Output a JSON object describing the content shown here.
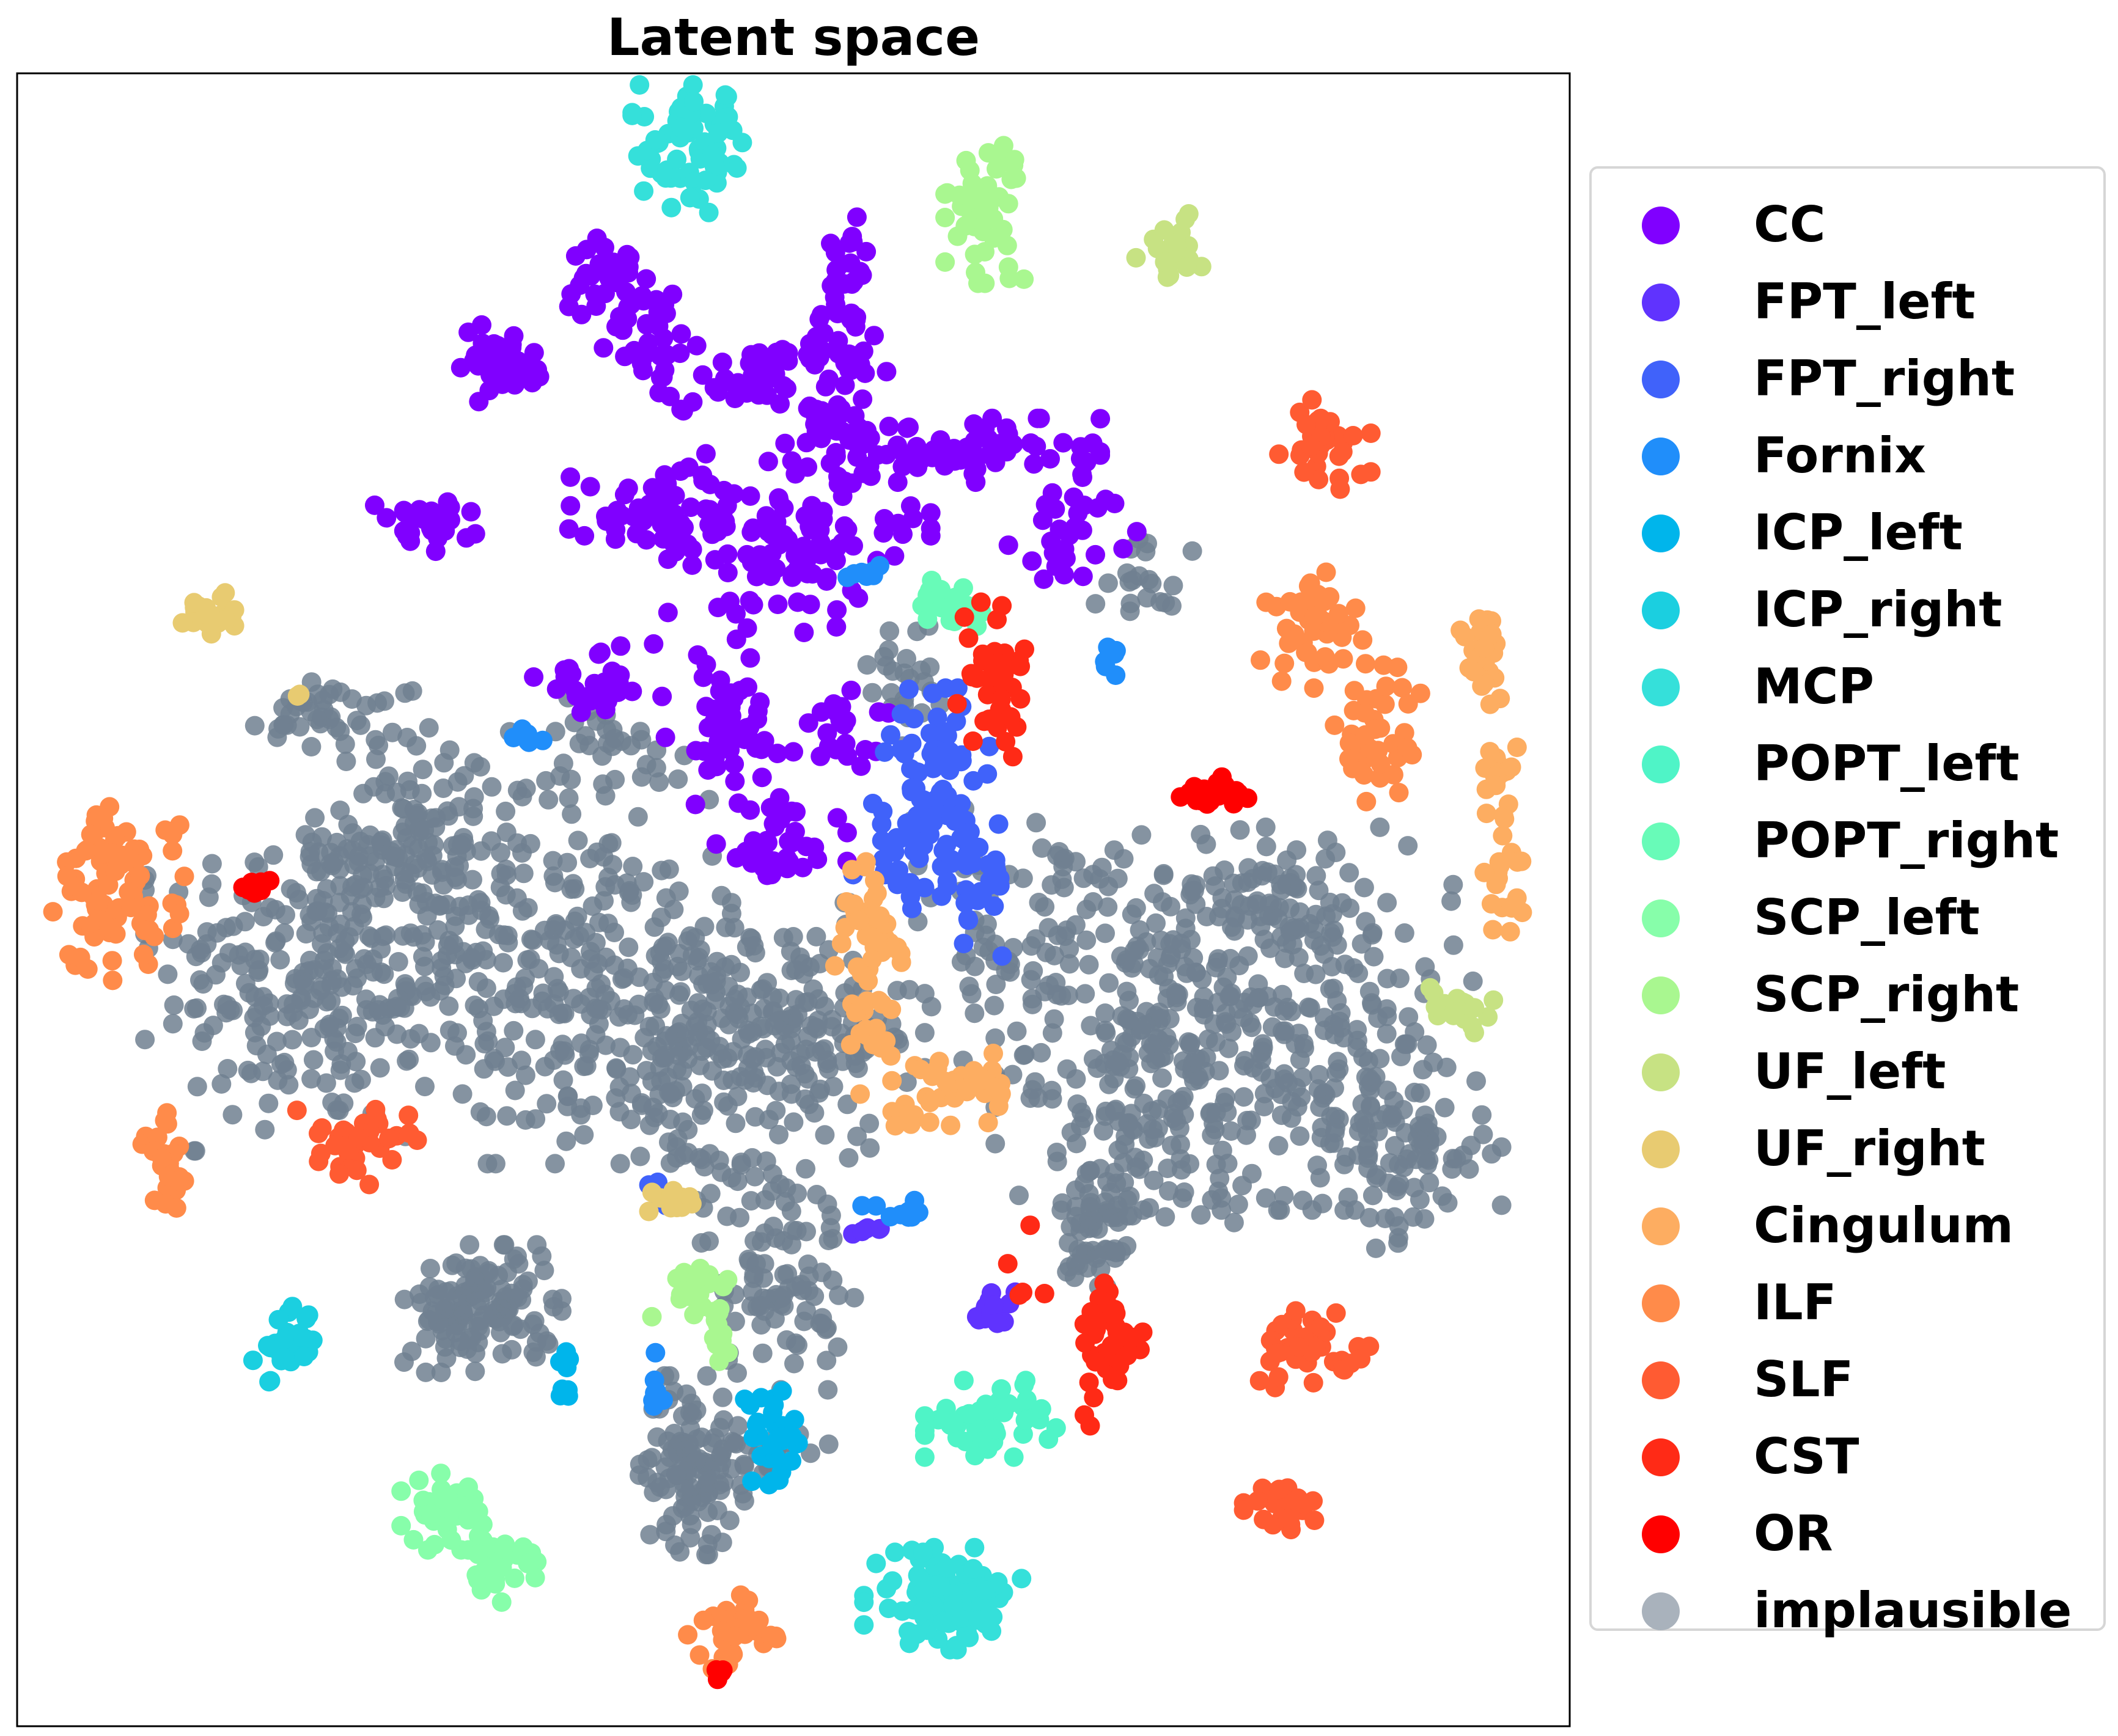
{
  "chart_data": {
    "type": "scatter",
    "title": "Latent space",
    "xlabel": "",
    "ylabel": "",
    "axis_ticks": "none",
    "grid": false,
    "legend_placement": "right, outside plot",
    "series": [
      {
        "name": "CC",
        "color": "#8000ff",
        "clusters": [
          {
            "x": -4.5,
            "y": 9.5,
            "sx": 0.5,
            "sy": 0.3,
            "n": 40
          },
          {
            "x": -2.6,
            "y": 11.0,
            "sx": 0.3,
            "sy": 0.3,
            "n": 25
          },
          {
            "x": -1.8,
            "y": 10.0,
            "sx": 0.4,
            "sy": 0.6,
            "n": 40
          },
          {
            "x": -0.2,
            "y": 9.2,
            "sx": 0.5,
            "sy": 0.2,
            "n": 25
          },
          {
            "x": 0.3,
            "y": 9.6,
            "sx": 0.3,
            "sy": 0.2,
            "n": 15
          },
          {
            "x": 1.4,
            "y": 10.2,
            "sx": 0.3,
            "sy": 1.0,
            "n": 55
          },
          {
            "x": 3.0,
            "y": 8.0,
            "sx": 1.2,
            "sy": 0.25,
            "n": 80
          },
          {
            "x": 1.0,
            "y": 8.5,
            "sx": 0.4,
            "sy": 0.2,
            "n": 20
          },
          {
            "x": -1.5,
            "y": 6.9,
            "sx": 0.8,
            "sy": 0.4,
            "n": 70
          },
          {
            "x": 0.6,
            "y": 6.4,
            "sx": 1.0,
            "sy": 0.7,
            "n": 100
          },
          {
            "x": -5.7,
            "y": 6.7,
            "sx": 0.4,
            "sy": 0.2,
            "n": 30
          },
          {
            "x": 5.2,
            "y": 6.8,
            "sx": 0.5,
            "sy": 0.5,
            "n": 30
          },
          {
            "x": -0.6,
            "y": 3.2,
            "sx": 0.5,
            "sy": 0.7,
            "n": 60
          },
          {
            "x": 0.3,
            "y": 1.2,
            "sx": 0.5,
            "sy": 0.4,
            "n": 40
          },
          {
            "x": -2.8,
            "y": 4.0,
            "sx": 0.5,
            "sy": 0.3,
            "n": 30
          },
          {
            "x": 1.4,
            "y": 3.2,
            "sx": 0.4,
            "sy": 0.3,
            "n": 20
          }
        ]
      },
      {
        "name": "FPT_left",
        "color": "#6033fe",
        "clusters": [
          {
            "x": 3.8,
            "y": -6.9,
            "sx": 0.2,
            "sy": 0.2,
            "n": 15
          },
          {
            "x": 1.8,
            "y": -5.5,
            "sx": 0.2,
            "sy": 0.1,
            "n": 6
          }
        ]
      },
      {
        "name": "FPT_right",
        "color": "#4062fa",
        "clusters": [
          {
            "x": 2.9,
            "y": 2.8,
            "sx": 0.4,
            "sy": 0.5,
            "n": 50
          },
          {
            "x": 2.6,
            "y": 1.2,
            "sx": 0.5,
            "sy": 0.5,
            "n": 50
          },
          {
            "x": 3.5,
            "y": 0.6,
            "sx": 0.3,
            "sy": 0.6,
            "n": 30
          },
          {
            "x": -1.7,
            "y": -5.0,
            "sx": 0.1,
            "sy": 0.2,
            "n": 6
          }
        ]
      },
      {
        "name": "Fornix",
        "color": "#208efa",
        "clusters": [
          {
            "x": 1.8,
            "y": 5.9,
            "sx": 0.2,
            "sy": 0.05,
            "n": 8
          },
          {
            "x": 2.2,
            "y": -5.1,
            "sx": 0.25,
            "sy": 0.1,
            "n": 10
          },
          {
            "x": -4.0,
            "y": 3.0,
            "sx": 0.2,
            "sy": 0.1,
            "n": 6
          },
          {
            "x": -1.8,
            "y": -8.2,
            "sx": 0.1,
            "sy": 0.3,
            "n": 8
          },
          {
            "x": 5.8,
            "y": 4.2,
            "sx": 0.1,
            "sy": 0.2,
            "n": 6
          }
        ]
      },
      {
        "name": "ICP_left",
        "color": "#00b5eb",
        "clusters": [
          {
            "x": 0.2,
            "y": -9.1,
            "sx": 0.3,
            "sy": 0.4,
            "n": 30
          },
          {
            "x": -3.3,
            "y": -8.0,
            "sx": 0.05,
            "sy": 0.3,
            "n": 8
          }
        ]
      },
      {
        "name": "ICP_right",
        "color": "#1bcfe0",
        "clusters": [
          {
            "x": -8.0,
            "y": -7.4,
            "sx": 0.25,
            "sy": 0.3,
            "n": 30
          }
        ]
      },
      {
        "name": "MCP",
        "color": "#35e0da",
        "clusters": [
          {
            "x": -1.1,
            "y": 13.2,
            "sx": 0.5,
            "sy": 0.5,
            "n": 70
          },
          {
            "x": 3.0,
            "y": -11.8,
            "sx": 0.6,
            "sy": 0.4,
            "n": 100
          }
        ]
      },
      {
        "name": "POPT_left",
        "color": "#4ff4c7",
        "clusters": [
          {
            "x": 3.8,
            "y": -8.7,
            "sx": 0.5,
            "sy": 0.3,
            "n": 50
          }
        ]
      },
      {
        "name": "POPT_right",
        "color": "#68fbb8",
        "clusters": [
          {
            "x": 3.1,
            "y": 5.3,
            "sx": 0.25,
            "sy": 0.25,
            "n": 25
          }
        ]
      },
      {
        "name": "SCP_left",
        "color": "#87feaa",
        "clusters": [
          {
            "x": -5.3,
            "y": -10.3,
            "sx": 0.35,
            "sy": 0.3,
            "n": 40
          },
          {
            "x": -4.4,
            "y": -11.2,
            "sx": 0.35,
            "sy": 0.3,
            "n": 30
          }
        ]
      },
      {
        "name": "SCP_right",
        "color": "#a9f790",
        "clusters": [
          {
            "x": 3.7,
            "y": 12.2,
            "sx": 0.3,
            "sy": 0.6,
            "n": 50
          },
          {
            "x": -1.1,
            "y": -6.5,
            "sx": 0.35,
            "sy": 0.2,
            "n": 20
          },
          {
            "x": -0.8,
            "y": -7.2,
            "sx": 0.1,
            "sy": 0.3,
            "n": 10
          }
        ]
      },
      {
        "name": "UF_left",
        "color": "#c7e283",
        "clusters": [
          {
            "x": 6.8,
            "y": 11.5,
            "sx": 0.3,
            "sy": 0.3,
            "n": 25
          },
          {
            "x": 11.7,
            "y": -1.6,
            "sx": 0.3,
            "sy": 0.2,
            "n": 20
          }
        ]
      },
      {
        "name": "UF_right",
        "color": "#e8cb71",
        "clusters": [
          {
            "x": -9.3,
            "y": 5.2,
            "sx": 0.2,
            "sy": 0.2,
            "n": 25
          },
          {
            "x": -1.4,
            "y": -5.0,
            "sx": 0.25,
            "sy": 0.15,
            "n": 12
          },
          {
            "x": -7.7,
            "y": 3.8,
            "sx": 0.05,
            "sy": 0.05,
            "n": 2
          }
        ]
      },
      {
        "name": "Cingulum",
        "color": "#fdad61",
        "clusters": [
          {
            "x": 12.1,
            "y": 4.5,
            "sx": 0.2,
            "sy": 0.4,
            "n": 25
          },
          {
            "x": 12.3,
            "y": 2.4,
            "sx": 0.15,
            "sy": 0.3,
            "n": 15
          },
          {
            "x": 12.4,
            "y": 0.6,
            "sx": 0.15,
            "sy": 0.5,
            "n": 20
          },
          {
            "x": 1.8,
            "y": -0.4,
            "sx": 0.3,
            "sy": 0.7,
            "n": 40
          },
          {
            "x": 1.9,
            "y": -2.0,
            "sx": 0.2,
            "sy": 0.5,
            "n": 20
          },
          {
            "x": 3.3,
            "y": -3.0,
            "sx": 0.35,
            "sy": 0.35,
            "n": 30
          },
          {
            "x": 2.4,
            "y": -3.5,
            "sx": 0.2,
            "sy": 0.1,
            "n": 10
          }
        ]
      },
      {
        "name": "ILF",
        "color": "#ff8b4a",
        "clusters": [
          {
            "x": -10.8,
            "y": 0.4,
            "sx": 0.5,
            "sy": 0.7,
            "n": 90
          },
          {
            "x": -10.0,
            "y": -4.3,
            "sx": 0.2,
            "sy": 0.4,
            "n": 25
          },
          {
            "x": 9.2,
            "y": 5.0,
            "sx": 0.4,
            "sy": 0.5,
            "n": 40
          },
          {
            "x": 10.3,
            "y": 3.0,
            "sx": 0.35,
            "sy": 0.6,
            "n": 40
          },
          {
            "x": -0.5,
            "y": -12.4,
            "sx": 0.35,
            "sy": 0.3,
            "n": 30
          }
        ]
      },
      {
        "name": "SLF",
        "color": "#ff5b32",
        "clusters": [
          {
            "x": 9.4,
            "y": 8.1,
            "sx": 0.35,
            "sy": 0.35,
            "n": 30
          },
          {
            "x": -6.9,
            "y": -4.0,
            "sx": 0.5,
            "sy": 0.3,
            "n": 40
          },
          {
            "x": 9.2,
            "y": -7.5,
            "sx": 0.5,
            "sy": 0.3,
            "n": 40
          },
          {
            "x": 8.7,
            "y": -10.2,
            "sx": 0.3,
            "sy": 0.2,
            "n": 25
          }
        ]
      },
      {
        "name": "CST",
        "color": "#ff2a16",
        "clusters": [
          {
            "x": 3.9,
            "y": 4.1,
            "sx": 0.3,
            "sy": 0.7,
            "n": 40
          },
          {
            "x": 5.8,
            "y": -7.5,
            "sx": 0.25,
            "sy": 0.6,
            "n": 40
          },
          {
            "x": 4.6,
            "y": -6.1,
            "sx": 0.4,
            "sy": 0.4,
            "n": 5
          }
        ]
      },
      {
        "name": "OR",
        "color": "#ff0000",
        "clusters": [
          {
            "x": 7.6,
            "y": 2.0,
            "sx": 0.3,
            "sy": 0.2,
            "n": 20
          },
          {
            "x": -8.5,
            "y": 0.5,
            "sx": 0.15,
            "sy": 0.1,
            "n": 10
          },
          {
            "x": -0.8,
            "y": -13.1,
            "sx": 0.08,
            "sy": 0.05,
            "n": 4
          }
        ]
      },
      {
        "name": "implausible",
        "color": "#708090",
        "clusters": [
          {
            "x": -7.5,
            "y": -1.0,
            "sx": 1.3,
            "sy": 1.4,
            "n": 260
          },
          {
            "x": -5.8,
            "y": 1.2,
            "sx": 0.8,
            "sy": 1.0,
            "n": 120
          },
          {
            "x": -3.5,
            "y": -1.0,
            "sx": 1.2,
            "sy": 1.5,
            "n": 220
          },
          {
            "x": -1.3,
            "y": -2.3,
            "sx": 0.8,
            "sy": 1.2,
            "n": 140
          },
          {
            "x": 0.5,
            "y": -2.0,
            "sx": 1.0,
            "sy": 1.0,
            "n": 150
          },
          {
            "x": 6.3,
            "y": -2.5,
            "sx": 1.1,
            "sy": 1.5,
            "n": 200
          },
          {
            "x": 8.8,
            "y": -1.8,
            "sx": 1.4,
            "sy": 1.5,
            "n": 240
          },
          {
            "x": 10.6,
            "y": -4.0,
            "sx": 0.8,
            "sy": 0.8,
            "n": 100
          },
          {
            "x": 8.3,
            "y": 0.3,
            "sx": 0.8,
            "sy": 0.6,
            "n": 60
          },
          {
            "x": -4.7,
            "y": -6.8,
            "sx": 0.6,
            "sy": 0.5,
            "n": 130
          },
          {
            "x": -1.2,
            "y": -9.5,
            "sx": 0.4,
            "sy": 0.7,
            "n": 110
          },
          {
            "x": 0.2,
            "y": -6.0,
            "sx": 0.6,
            "sy": 1.0,
            "n": 100
          },
          {
            "x": 5.6,
            "y": -5.5,
            "sx": 0.3,
            "sy": 0.8,
            "n": 60
          },
          {
            "x": 4.5,
            "y": 0.5,
            "sx": 1.0,
            "sy": 0.6,
            "n": 40
          },
          {
            "x": -7.2,
            "y": 3.5,
            "sx": 0.6,
            "sy": 0.3,
            "n": 40
          },
          {
            "x": 2.3,
            "y": 4.0,
            "sx": 0.3,
            "sy": 0.5,
            "n": 25
          },
          {
            "x": 0.3,
            "y": -9.2,
            "sx": 0.4,
            "sy": 0.2,
            "n": 15
          },
          {
            "x": 6.3,
            "y": 5.8,
            "sx": 0.4,
            "sy": 0.4,
            "n": 20
          },
          {
            "x": -2.5,
            "y": 3.0,
            "sx": 0.6,
            "sy": 0.4,
            "n": 30
          },
          {
            "x": 4.0,
            "y": -1.2,
            "sx": 1.0,
            "sy": 0.6,
            "n": 30
          }
        ]
      }
    ]
  },
  "legend": {
    "items": [
      {
        "label": "CC",
        "color": "#8000ff"
      },
      {
        "label": "FPT_left",
        "color": "#6033fe"
      },
      {
        "label": "FPT_right",
        "color": "#4062fa"
      },
      {
        "label": "Fornix",
        "color": "#208efa"
      },
      {
        "label": "ICP_left",
        "color": "#00b5eb"
      },
      {
        "label": "ICP_right",
        "color": "#1bcfe0"
      },
      {
        "label": "MCP",
        "color": "#35e0da"
      },
      {
        "label": "POPT_left",
        "color": "#4ff4c7"
      },
      {
        "label": "POPT_right",
        "color": "#68fbb8"
      },
      {
        "label": "SCP_left",
        "color": "#87feaa"
      },
      {
        "label": "SCP_right",
        "color": "#a9f790"
      },
      {
        "label": "UF_left",
        "color": "#c7e283"
      },
      {
        "label": "UF_right",
        "color": "#e8cb71"
      },
      {
        "label": "Cingulum",
        "color": "#fdad61"
      },
      {
        "label": "ILF",
        "color": "#ff8b4a"
      },
      {
        "label": "SLF",
        "color": "#ff5b32"
      },
      {
        "label": "CST",
        "color": "#ff2a16"
      },
      {
        "label": "OR",
        "color": "#ff0000"
      },
      {
        "label": "implausible",
        "color": "#a9b2bc"
      }
    ]
  }
}
